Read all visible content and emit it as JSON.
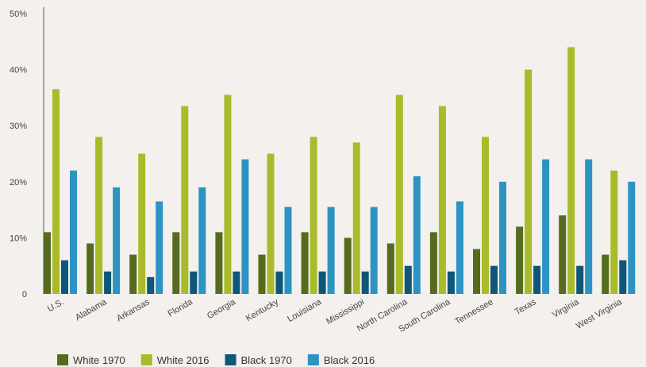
{
  "chart_data": {
    "type": "bar",
    "ylim": [
      0,
      50
    ],
    "yticks": [
      0,
      10,
      20,
      30,
      40,
      50
    ],
    "ytick_labels": [
      "0",
      "10%",
      "20%",
      "30%",
      "40%",
      "50%"
    ],
    "grid": false,
    "legend_position": "bottom-left",
    "categories": [
      "U.S.",
      "Alabama",
      "Arkansas",
      "Florida",
      "Georgia",
      "Kentucky",
      "Louisiana",
      "Mississippi",
      "North Carolina",
      "South Carolina",
      "Tennessee",
      "Texas",
      "Virginia",
      "West Virginia"
    ],
    "series": [
      {
        "name": "White 1970",
        "color": "#556b1d",
        "values": [
          11,
          9,
          7,
          11,
          11,
          7,
          11,
          10,
          9,
          11,
          8,
          12,
          14,
          7
        ]
      },
      {
        "name": "White 2016",
        "color": "#a9bb2a",
        "values": [
          36.5,
          28,
          25,
          33.5,
          35.5,
          25,
          28,
          27,
          35.5,
          33.5,
          28,
          40,
          44,
          22
        ]
      },
      {
        "name": "Black 1970",
        "color": "#0f5679",
        "values": [
          6,
          4,
          3,
          4,
          4,
          4,
          4,
          4,
          5,
          4,
          5,
          5,
          5,
          6
        ]
      },
      {
        "name": "Black 2016",
        "color": "#2d93c3",
        "values": [
          22,
          19,
          16.5,
          19,
          24,
          15.5,
          15.5,
          15.5,
          21,
          16.5,
          20,
          24,
          24,
          20
        ]
      }
    ]
  }
}
